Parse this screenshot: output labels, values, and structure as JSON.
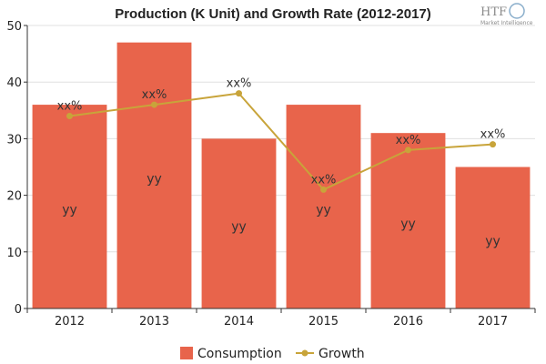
{
  "logo": {
    "main": "HTF",
    "sub": "Market Intelligence"
  },
  "colors": {
    "bar": "#e8644b",
    "line": "#c8a43a",
    "grid": "#e0e0e0",
    "axis": "#333333",
    "background": "#ffffff"
  },
  "chart_data": {
    "type": "bar",
    "title": "Production (K Unit) and Growth Rate (2012-2017)",
    "categories": [
      "2012",
      "2013",
      "2014",
      "2015",
      "2016",
      "2017"
    ],
    "ylim": [
      0,
      50
    ],
    "yticks": [
      0,
      10,
      20,
      30,
      40,
      50
    ],
    "grid": true,
    "legend_position": "bottom",
    "series": [
      {
        "name": "Consumption",
        "type": "bar",
        "values": [
          36,
          47,
          30,
          36,
          31,
          25
        ],
        "labels": [
          "yy",
          "yy",
          "yy",
          "yy",
          "yy",
          "yy"
        ]
      },
      {
        "name": "Growth",
        "type": "line",
        "values": [
          34,
          36,
          38,
          21,
          28,
          29
        ],
        "labels": [
          "xx%",
          "xx%",
          "xx%",
          "xx%",
          "xx%",
          "xx%"
        ]
      }
    ]
  }
}
